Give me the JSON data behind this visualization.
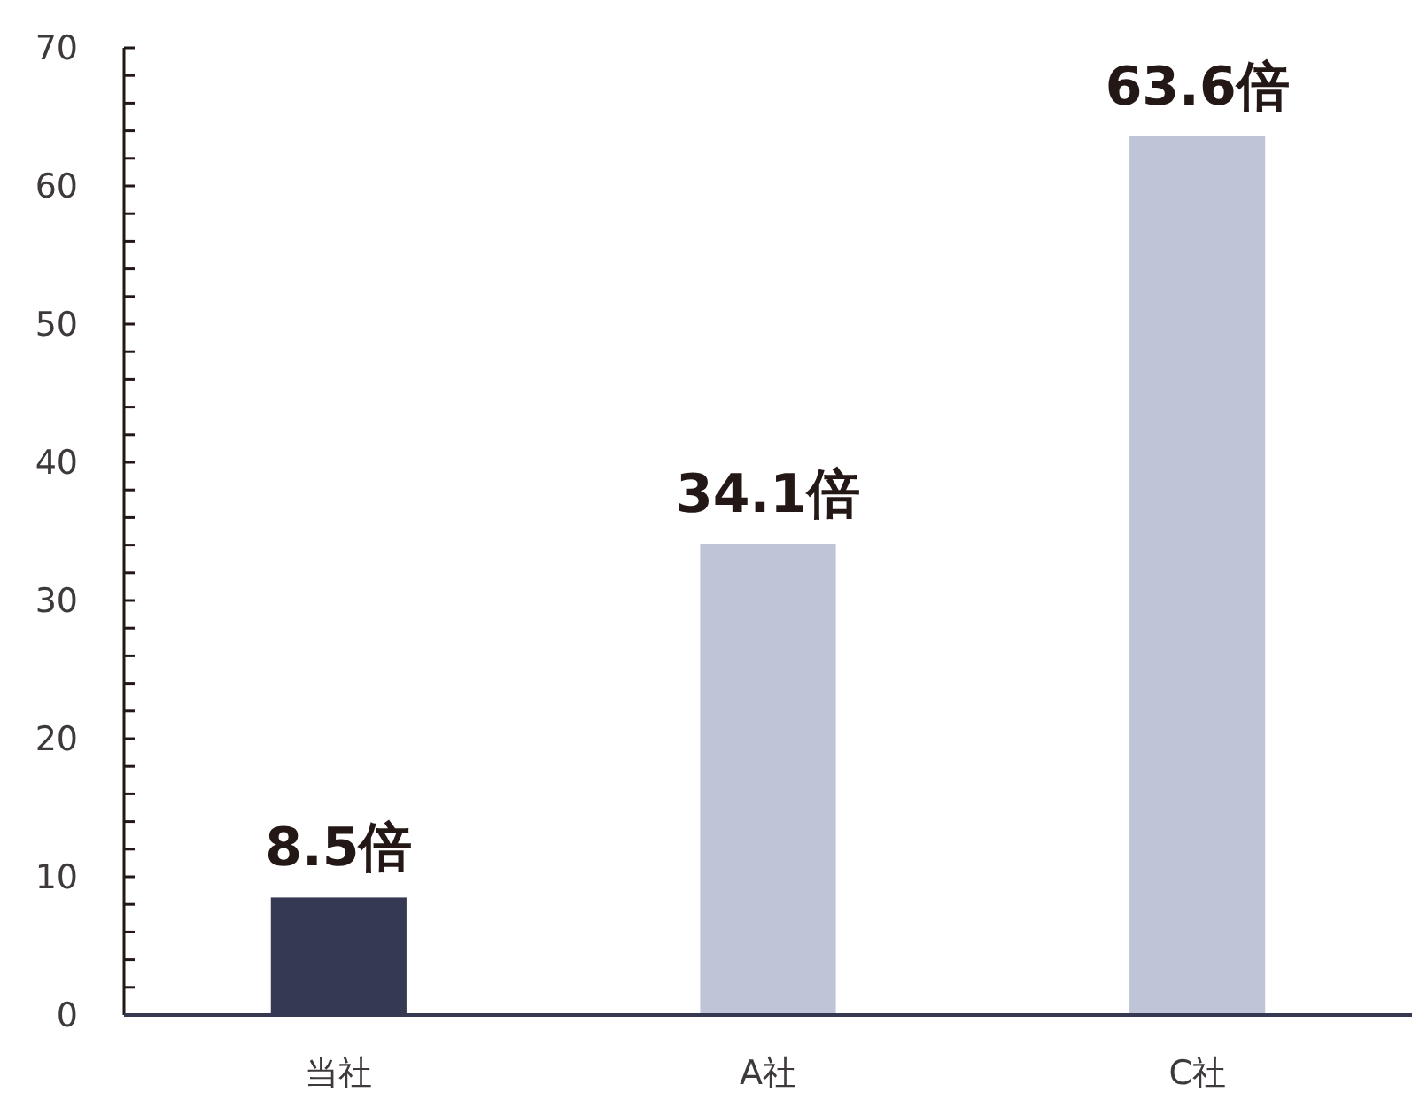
{
  "chart_data": {
    "type": "bar",
    "categories": [
      "当社",
      "A社",
      "C社"
    ],
    "values": [
      8.5,
      34.1,
      63.6
    ],
    "colors": [
      "#353a52",
      "#bfc4d6",
      "#bfc4d6"
    ],
    "value_labels": [
      "8.5倍",
      "34.1倍",
      "63.6倍"
    ],
    "ylim": [
      0,
      70
    ],
    "yticks": [
      0,
      {
        "value": 2,
        "label": null
      },
      {
        "value": 4,
        "label": null
      },
      {
        "value": 6,
        "label": null
      },
      {
        "value": 8,
        "label": null
      },
      10,
      {
        "value": 12,
        "label": null
      },
      {
        "value": 14,
        "label": null
      },
      {
        "value": 16,
        "label": null
      },
      {
        "value": 18,
        "label": null
      },
      20,
      {
        "value": 22,
        "label": null
      },
      {
        "value": 24,
        "label": null
      },
      {
        "value": 26,
        "label": null
      },
      {
        "value": 28,
        "label": null
      },
      30,
      {
        "value": 32,
        "label": null
      },
      {
        "value": 34,
        "label": null
      },
      {
        "value": 36,
        "label": null
      },
      {
        "value": 38,
        "label": null
      },
      40,
      {
        "value": 42,
        "label": null
      },
      {
        "value": 44,
        "label": null
      },
      {
        "value": 46,
        "label": null
      },
      {
        "value": 48,
        "label": null
      },
      50,
      {
        "value": 52,
        "label": null
      },
      {
        "value": 54,
        "label": null
      },
      {
        "value": 56,
        "label": null
      },
      {
        "value": 58,
        "label": null
      },
      60,
      {
        "value": 62,
        "label": null
      },
      {
        "value": 64,
        "label": null
      },
      {
        "value": 66,
        "label": null
      },
      {
        "value": 68,
        "label": null
      },
      70
    ],
    "grid": false
  }
}
